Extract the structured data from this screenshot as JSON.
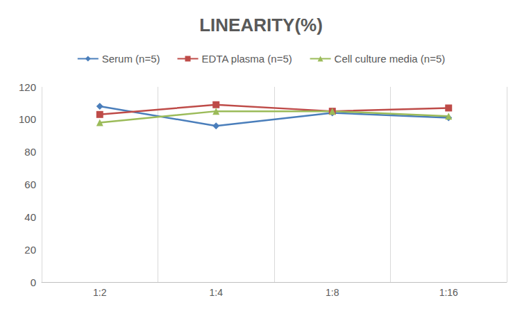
{
  "chart_data": {
    "type": "line",
    "title": "LINEARITY(%)",
    "categories": [
      "1:2",
      "1:4",
      "1:8",
      "1:16"
    ],
    "series": [
      {
        "name": "Serum (n=5)",
        "color": "#4a7ebb",
        "marker": "diamond",
        "values": [
          108,
          96,
          104,
          101
        ]
      },
      {
        "name": "EDTA plasma (n=5)",
        "color": "#be4b48",
        "marker": "square",
        "values": [
          103,
          109,
          105,
          107
        ]
      },
      {
        "name": "Cell culture media (n=5)",
        "color": "#9bbb59",
        "marker": "triangle",
        "values": [
          98,
          105,
          105,
          102
        ]
      }
    ],
    "ylim": [
      0,
      120
    ],
    "yticks": [
      0,
      20,
      40,
      60,
      80,
      100,
      120
    ],
    "grid": true,
    "legend": "top"
  }
}
